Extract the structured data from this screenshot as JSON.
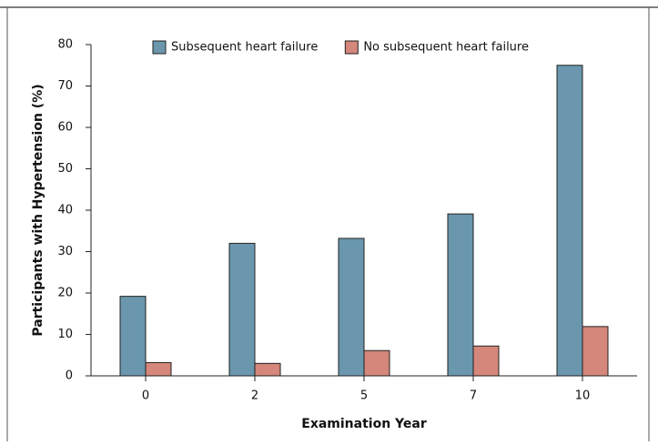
{
  "chart_data": {
    "type": "bar",
    "x_label": "Examination Year",
    "y_label": "Participants with Hypertension (%)",
    "categories": [
      "0",
      "2",
      "5",
      "7",
      "10"
    ],
    "series": [
      {
        "name": "Subsequent heart failure",
        "color": "#6a97ad",
        "values": [
          19.2,
          32,
          33.2,
          39.1,
          75
        ]
      },
      {
        "name": "No subsequent heart failure",
        "color": "#d4877a",
        "values": [
          3.2,
          3.0,
          6.1,
          7.2,
          11.9
        ]
      }
    ],
    "ylim": [
      0,
      80
    ],
    "yticks": [
      0,
      10,
      20,
      30,
      40,
      50,
      60,
      70,
      80
    ],
    "legend": "top"
  }
}
